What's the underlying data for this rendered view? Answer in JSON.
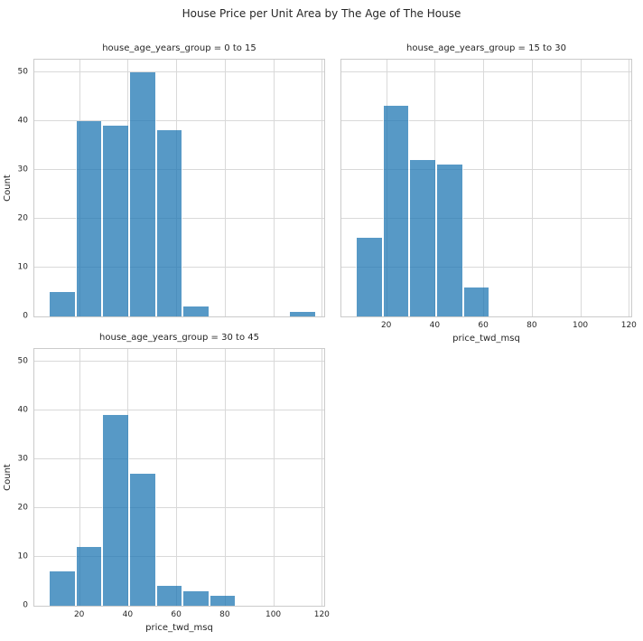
{
  "figure_title": "House Price per Unit Area by The Age of The House",
  "chart_data": {
    "type": "bar",
    "variant": "faceted-histogram",
    "title": "House Price per Unit Area by The Age of The House",
    "xlabel": "price_twd_msq",
    "ylabel": "Count",
    "grid": true,
    "legend": false,
    "xlim": [
      1.5,
      121
    ],
    "ylim": [
      0,
      52.5
    ],
    "xticks": [
      20,
      40,
      60,
      80,
      100,
      120
    ],
    "yticks": [
      0,
      10,
      20,
      30,
      40,
      50
    ],
    "bin_edges": [
      7.6,
      18.6,
      29.6,
      40.6,
      51.6,
      62.6,
      73.6,
      84.6,
      95.6,
      106.6,
      117.6
    ],
    "facet_variable": "house_age_years_group",
    "facets": [
      {
        "label": "house_age_years_group = 0 to 15",
        "counts": [
          5,
          40,
          39,
          50,
          38,
          2,
          0,
          0,
          0,
          1
        ]
      },
      {
        "label": "house_age_years_group = 15 to 30",
        "counts": [
          16,
          43,
          32,
          31,
          6,
          0,
          0,
          0,
          0,
          0
        ]
      },
      {
        "label": "house_age_years_group = 30 to 45",
        "counts": [
          7,
          12,
          39,
          27,
          4,
          3,
          2,
          0,
          0,
          0
        ]
      }
    ]
  },
  "style": {
    "bar_color": "#1f77b4",
    "bar_opacity": "0.75",
    "bar_edge_color": "#ffffff",
    "grid_color": "#d9d9d9",
    "spine_color": "#cbcbcb",
    "text_color": "#262626",
    "background_color": "#ffffff"
  }
}
